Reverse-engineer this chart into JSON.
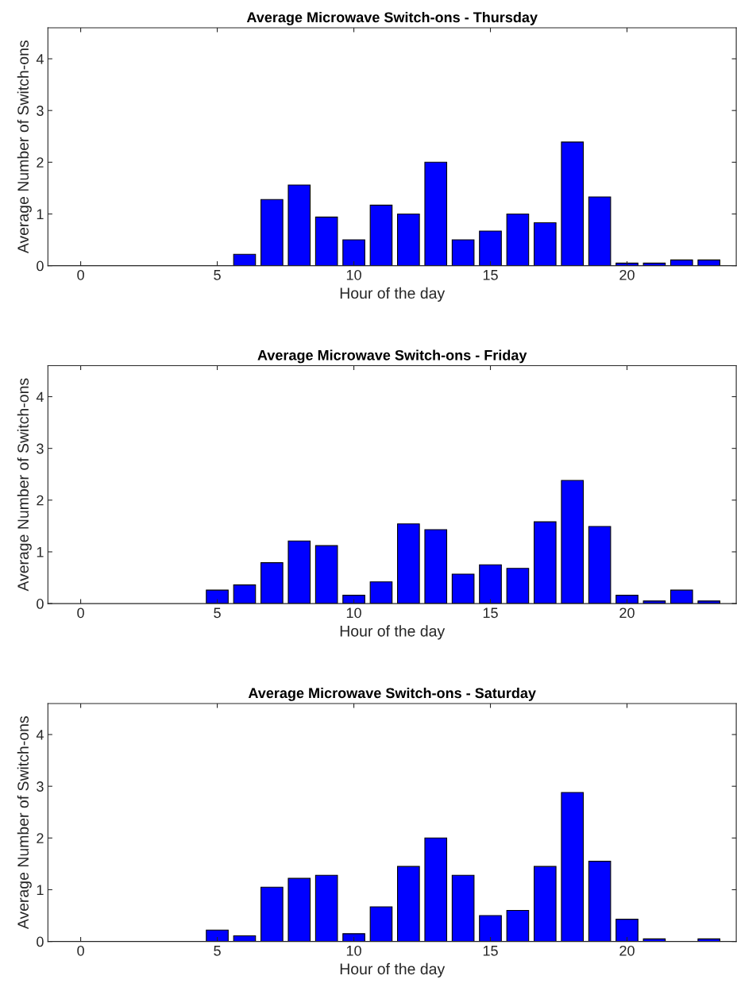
{
  "chart_data": [
    {
      "type": "bar",
      "title": "Average Microwave Switch-ons - Thursday",
      "xlabel": "Hour of the day",
      "ylabel": "Average Number of Switch-ons",
      "x": [
        6,
        7,
        8,
        9,
        10,
        11,
        12,
        13,
        14,
        15,
        16,
        17,
        18,
        19,
        20,
        21,
        22,
        23
      ],
      "values": [
        0.22,
        1.28,
        1.56,
        0.94,
        0.5,
        1.17,
        1.0,
        2.0,
        0.5,
        0.67,
        1.0,
        0.83,
        2.39,
        1.33,
        0.05,
        0.05,
        0.11,
        0.11
      ],
      "color": "#0000ff",
      "xlim": [
        -1.2,
        24
      ],
      "xticks": [
        0,
        5,
        10,
        15,
        20
      ],
      "ylim": [
        0,
        4.6
      ],
      "yticks": [
        0,
        1,
        2,
        3,
        4
      ],
      "grid": false
    },
    {
      "type": "bar",
      "title": "Average Microwave Switch-ons - Friday",
      "xlabel": "Hour of the day",
      "ylabel": "Average Number of Switch-ons",
      "x": [
        5,
        6,
        7,
        8,
        9,
        10,
        11,
        12,
        13,
        14,
        15,
        16,
        17,
        18,
        19,
        20,
        21,
        22,
        23
      ],
      "values": [
        0.26,
        0.36,
        0.79,
        1.21,
        1.12,
        0.16,
        0.42,
        1.54,
        1.43,
        0.57,
        0.75,
        0.68,
        1.58,
        2.38,
        1.49,
        0.16,
        0.05,
        0.26,
        0.05
      ],
      "color": "#0000ff",
      "xlim": [
        -1.2,
        24
      ],
      "xticks": [
        0,
        5,
        10,
        15,
        20
      ],
      "ylim": [
        0,
        4.6
      ],
      "yticks": [
        0,
        1,
        2,
        3,
        4
      ],
      "grid": false
    },
    {
      "type": "bar",
      "title": "Average Microwave Switch-ons - Saturday",
      "xlabel": "Hour of the day",
      "ylabel": "Average Number of Switch-ons",
      "x": [
        5,
        6,
        7,
        8,
        9,
        10,
        11,
        12,
        13,
        14,
        15,
        16,
        17,
        18,
        19,
        20,
        21,
        22,
        23
      ],
      "values": [
        0.22,
        0.11,
        1.05,
        1.22,
        1.28,
        0.15,
        0.67,
        1.45,
        2.0,
        1.28,
        0.5,
        0.6,
        1.45,
        2.88,
        1.55,
        0.43,
        0.05,
        null,
        0.05
      ],
      "color": "#0000ff",
      "xlim": [
        -1.2,
        24
      ],
      "xticks": [
        0,
        5,
        10,
        15,
        20
      ],
      "ylim": [
        0,
        4.6
      ],
      "yticks": [
        0,
        1,
        2,
        3,
        4
      ],
      "grid": false
    }
  ]
}
